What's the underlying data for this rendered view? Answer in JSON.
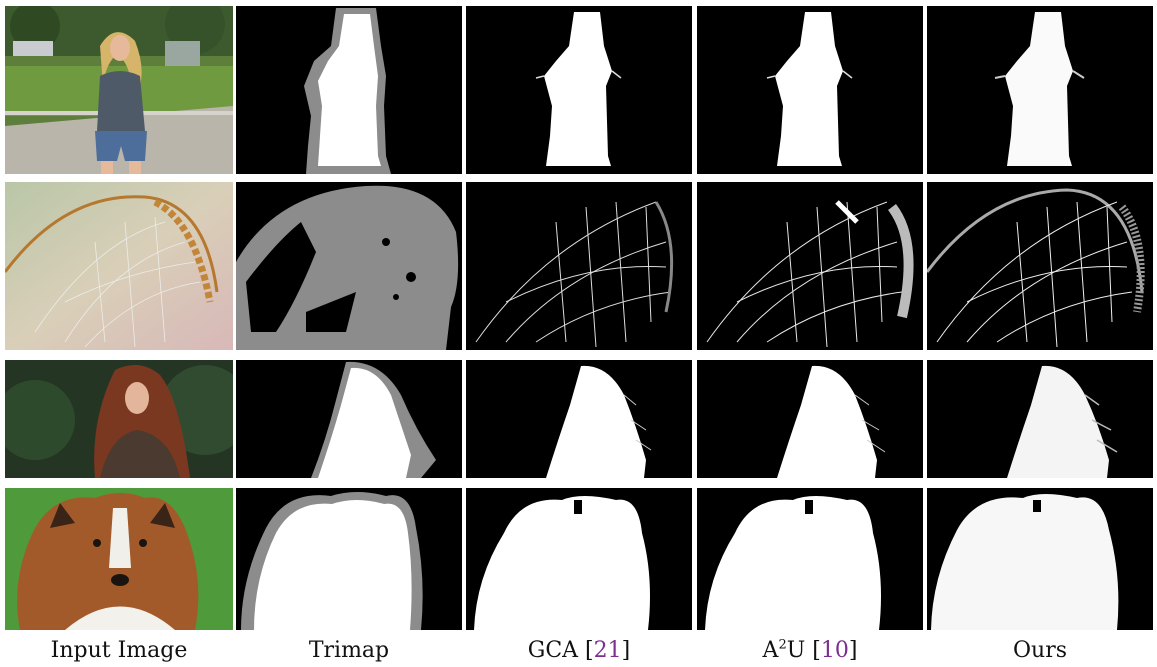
{
  "figure": {
    "columns": [
      {
        "id": "input",
        "label": "Input Image"
      },
      {
        "id": "trimap",
        "label": "Trimap"
      },
      {
        "id": "gca",
        "label": "GCA",
        "ref": "21"
      },
      {
        "id": "a2u",
        "label_base": "A",
        "label_sup": "2",
        "label_tail": "U",
        "ref": "10"
      },
      {
        "id": "ours",
        "label": "Ours"
      }
    ],
    "rows": [
      {
        "id": "woman-standing",
        "subject": "woman standing on street"
      },
      {
        "id": "spider-web",
        "subject": "dewy spider web on grass stem"
      },
      {
        "id": "red-hair-woman",
        "subject": "woman with long red hair"
      },
      {
        "id": "collie-dog",
        "subject": "sheltie dog portrait"
      }
    ],
    "colors": {
      "reference_link": "#7a2f8f",
      "trimap_unknown": "#8c8c8c",
      "matte_background": "#000000",
      "matte_foreground": "#ffffff"
    }
  }
}
